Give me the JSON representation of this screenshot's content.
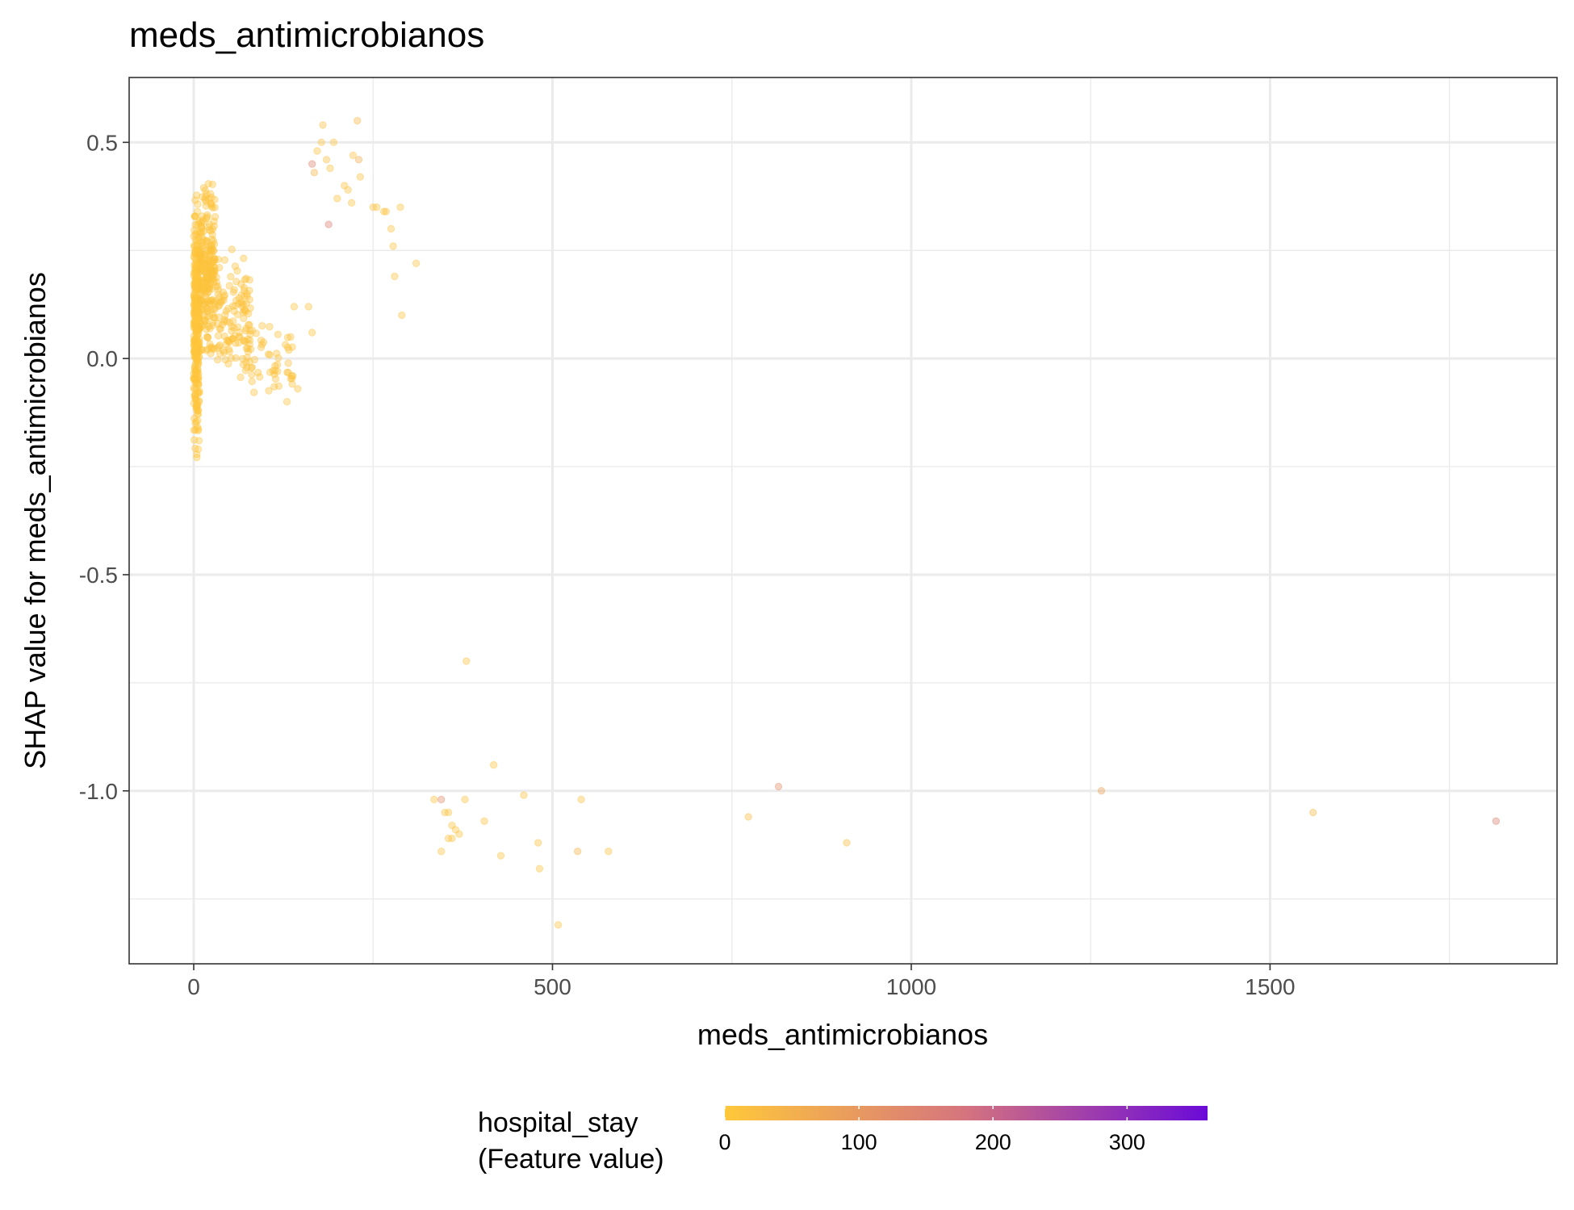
{
  "chart_data": {
    "type": "scatter",
    "title": "meds_antimicrobianos",
    "xlabel": "meds_antimicrobianos",
    "ylabel": "SHAP value for meds_antimicrobianos",
    "xlim": [
      -90,
      1900
    ],
    "ylim": [
      -1.4,
      0.65
    ],
    "x_ticks": [
      0,
      500,
      1000,
      1500
    ],
    "x_tick_labels": [
      "0",
      "500",
      "1000",
      "1500"
    ],
    "y_ticks": [
      0.5,
      0.0,
      -0.5,
      -1.0
    ],
    "y_tick_labels": [
      "0.5",
      "0.0",
      "-0.5",
      "-1.0"
    ],
    "grid": true,
    "point_alpha": 0.4,
    "color_scale": {
      "title_line1": "hospital_stay",
      "title_line2": "(Feature value)",
      "min": 0,
      "max": 360,
      "ticks": [
        0,
        100,
        200,
        300
      ],
      "tick_labels": [
        "0",
        "100",
        "200",
        "300"
      ],
      "color_low": "#ffc83a",
      "color_mid": "#d5737f",
      "color_high": "#6a0ad8",
      "legend_position": "bottom"
    },
    "points_dense_cluster": [
      {
        "x_range": [
          0,
          8
        ],
        "y_range": [
          -0.28,
          0.45
        ],
        "count": 320,
        "color_value": 5
      },
      {
        "x_range": [
          8,
          30
        ],
        "y_range": [
          -0.05,
          0.46
        ],
        "count": 220,
        "color_value": 8
      },
      {
        "x_range": [
          30,
          80
        ],
        "y_range": [
          -0.12,
          0.28
        ],
        "count": 130,
        "color_value": 10
      },
      {
        "x_range": [
          80,
          140
        ],
        "y_range": [
          -0.15,
          0.12
        ],
        "count": 45,
        "color_value": 12
      }
    ],
    "points": [
      {
        "x": 165,
        "y": 0.45,
        "c": 140
      },
      {
        "x": 168,
        "y": 0.43,
        "c": 40
      },
      {
        "x": 172,
        "y": 0.48,
        "c": 10
      },
      {
        "x": 178,
        "y": 0.5,
        "c": 10
      },
      {
        "x": 180,
        "y": 0.54,
        "c": 15
      },
      {
        "x": 185,
        "y": 0.46,
        "c": 20
      },
      {
        "x": 188,
        "y": 0.31,
        "c": 150
      },
      {
        "x": 190,
        "y": 0.44,
        "c": 10
      },
      {
        "x": 195,
        "y": 0.5,
        "c": 10
      },
      {
        "x": 200,
        "y": 0.37,
        "c": 10
      },
      {
        "x": 210,
        "y": 0.4,
        "c": 12
      },
      {
        "x": 215,
        "y": 0.39,
        "c": 12
      },
      {
        "x": 220,
        "y": 0.36,
        "c": 12
      },
      {
        "x": 222,
        "y": 0.47,
        "c": 15
      },
      {
        "x": 228,
        "y": 0.55,
        "c": 30
      },
      {
        "x": 230,
        "y": 0.46,
        "c": 60
      },
      {
        "x": 232,
        "y": 0.42,
        "c": 10
      },
      {
        "x": 250,
        "y": 0.35,
        "c": 10
      },
      {
        "x": 255,
        "y": 0.35,
        "c": 10
      },
      {
        "x": 265,
        "y": 0.34,
        "c": 10
      },
      {
        "x": 268,
        "y": 0.34,
        "c": 10
      },
      {
        "x": 275,
        "y": 0.3,
        "c": 10
      },
      {
        "x": 278,
        "y": 0.26,
        "c": 10
      },
      {
        "x": 280,
        "y": 0.19,
        "c": 10
      },
      {
        "x": 288,
        "y": 0.35,
        "c": 10
      },
      {
        "x": 290,
        "y": 0.1,
        "c": 10
      },
      {
        "x": 310,
        "y": 0.22,
        "c": 10
      },
      {
        "x": 160,
        "y": 0.12,
        "c": 10
      },
      {
        "x": 165,
        "y": 0.06,
        "c": 10
      },
      {
        "x": 140,
        "y": 0.12,
        "c": 10
      },
      {
        "x": 135,
        "y": 0.05,
        "c": 10
      },
      {
        "x": 145,
        "y": -0.07,
        "c": 10
      },
      {
        "x": 130,
        "y": -0.1,
        "c": 10
      },
      {
        "x": 380,
        "y": -0.7,
        "c": 10
      },
      {
        "x": 335,
        "y": -1.02,
        "c": 10
      },
      {
        "x": 345,
        "y": -1.02,
        "c": 130
      },
      {
        "x": 350,
        "y": -1.05,
        "c": 10
      },
      {
        "x": 355,
        "y": -1.05,
        "c": 10
      },
      {
        "x": 360,
        "y": -1.08,
        "c": 10
      },
      {
        "x": 365,
        "y": -1.09,
        "c": 10
      },
      {
        "x": 370,
        "y": -1.1,
        "c": 10
      },
      {
        "x": 378,
        "y": -1.02,
        "c": 10
      },
      {
        "x": 355,
        "y": -1.11,
        "c": 10
      },
      {
        "x": 360,
        "y": -1.11,
        "c": 10
      },
      {
        "x": 345,
        "y": -1.14,
        "c": 10
      },
      {
        "x": 405,
        "y": -1.07,
        "c": 10
      },
      {
        "x": 418,
        "y": -0.94,
        "c": 10
      },
      {
        "x": 428,
        "y": -1.15,
        "c": 10
      },
      {
        "x": 460,
        "y": -1.01,
        "c": 10
      },
      {
        "x": 480,
        "y": -1.12,
        "c": 10
      },
      {
        "x": 482,
        "y": -1.18,
        "c": 10
      },
      {
        "x": 508,
        "y": -1.31,
        "c": 10
      },
      {
        "x": 535,
        "y": -1.14,
        "c": 40
      },
      {
        "x": 540,
        "y": -1.02,
        "c": 10
      },
      {
        "x": 578,
        "y": -1.14,
        "c": 10
      },
      {
        "x": 773,
        "y": -1.06,
        "c": 20
      },
      {
        "x": 815,
        "y": -0.99,
        "c": 120
      },
      {
        "x": 910,
        "y": -1.12,
        "c": 20
      },
      {
        "x": 1265,
        "y": -1.0,
        "c": 80
      },
      {
        "x": 1560,
        "y": -1.05,
        "c": 30
      },
      {
        "x": 1815,
        "y": -1.07,
        "c": 150
      }
    ]
  }
}
